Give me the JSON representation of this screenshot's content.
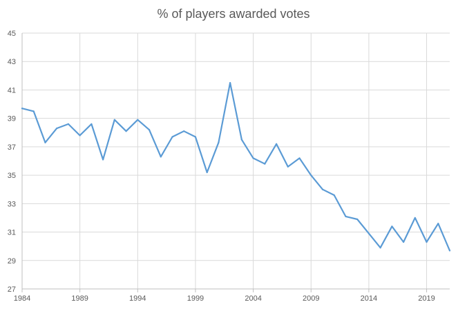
{
  "chart_data": {
    "type": "line",
    "title": "% of players awarded votes",
    "xlabel": "",
    "ylabel": "",
    "x": [
      1984,
      1985,
      1986,
      1987,
      1988,
      1989,
      1990,
      1991,
      1992,
      1993,
      1994,
      1995,
      1996,
      1997,
      1998,
      1999,
      2000,
      2001,
      2002,
      2003,
      2004,
      2005,
      2006,
      2007,
      2008,
      2009,
      2010,
      2011,
      2012,
      2013,
      2014,
      2015,
      2016,
      2017,
      2018,
      2019,
      2020,
      2021
    ],
    "series": [
      {
        "name": "",
        "values": [
          39.7,
          39.5,
          37.3,
          38.3,
          38.6,
          37.8,
          38.6,
          36.1,
          38.9,
          38.1,
          38.9,
          38.2,
          36.3,
          37.7,
          38.1,
          37.7,
          35.2,
          37.3,
          41.5,
          37.5,
          36.2,
          35.8,
          37.2,
          35.6,
          36.2,
          35.0,
          34.0,
          33.6,
          32.1,
          31.9,
          30.9,
          29.9,
          31.4,
          30.3,
          32.0,
          30.3,
          31.6,
          29.7
        ]
      }
    ],
    "xticks": [
      "1984",
      "1989",
      "1994",
      "1999",
      "2004",
      "2009",
      "2014",
      "2019"
    ],
    "yticks": [
      "27",
      "29",
      "31",
      "33",
      "35",
      "37",
      "39",
      "41",
      "43",
      "45"
    ],
    "xlim": [
      1984,
      2021
    ],
    "ylim": [
      27,
      45
    ],
    "grid": true,
    "legend": "none",
    "colors": {
      "line": "#5b9bd5",
      "grid": "#d9d9d9",
      "axis": "#bfbfbf",
      "text": "#595959"
    }
  }
}
